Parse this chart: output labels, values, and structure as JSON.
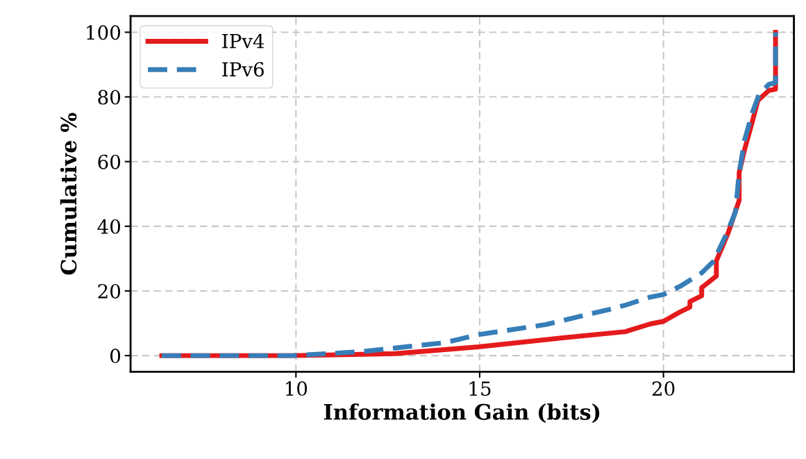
{
  "chart_data": {
    "type": "line",
    "xlabel": "Information Gain (bits)",
    "ylabel": "Cumulative %",
    "xlim": [
      5.5,
      23.55
    ],
    "xticks": [
      10,
      15,
      20
    ],
    "ylim": [
      -5,
      105
    ],
    "yticks": [
      0,
      20,
      40,
      60,
      80,
      100
    ],
    "grid": true,
    "legend": "top left",
    "series": [
      {
        "name": "IPv4",
        "color": "#e41a1c",
        "line_style": "solid",
        "x": [
          6.35,
          9.9,
          12.7,
          14.97,
          17.26,
          18.96,
          19.64,
          20.0,
          20.45,
          20.72,
          20.72,
          21.04,
          21.04,
          21.44,
          21.44,
          21.76,
          22.06,
          22.06,
          22.21,
          22.42,
          22.57,
          22.87,
          23.05,
          23.05
        ],
        "values": [
          0,
          0,
          0.6,
          2.7,
          5.5,
          7.4,
          9.8,
          10.6,
          13.5,
          15,
          16.7,
          18.5,
          21,
          24.6,
          29.3,
          37.9,
          48,
          56.6,
          63.8,
          72.4,
          78.9,
          82,
          82.4,
          100
        ]
      },
      {
        "name": "IPv6",
        "color": "#377eb8",
        "line_style": "dashed",
        "x": [
          6.35,
          9.9,
          11.76,
          14.05,
          14.97,
          16.8,
          18.64,
          18.96,
          19.64,
          20.0,
          20.45,
          21.04,
          21.44,
          21.5,
          21.7,
          21.96,
          22.06,
          22.21,
          22.42,
          22.61,
          22.87,
          23.05,
          23.05
        ],
        "values": [
          0,
          0,
          1.2,
          4.0,
          6.5,
          9.6,
          14.6,
          15.6,
          18.1,
          18.9,
          21.4,
          25.6,
          30,
          32.5,
          37.2,
          44.4,
          56.6,
          66.7,
          75.2,
          81,
          83.9,
          84.4,
          100
        ]
      }
    ]
  }
}
